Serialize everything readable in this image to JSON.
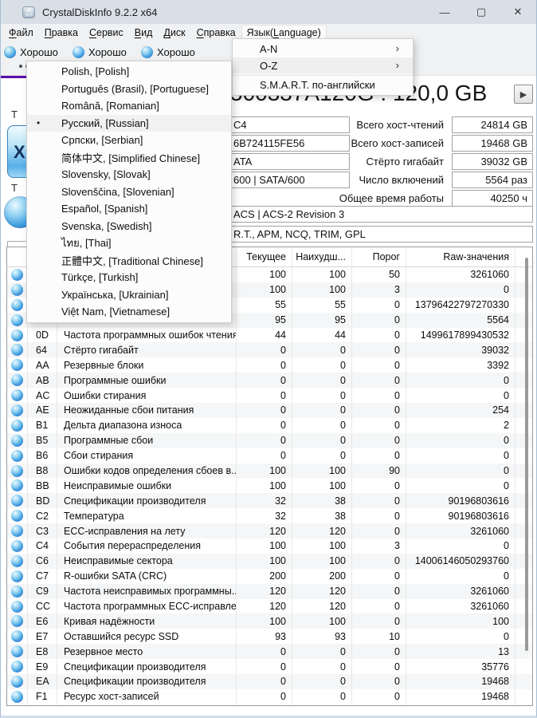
{
  "window": {
    "title": "CrystalDiskInfo 9.2.2 x64",
    "minimize_icon": "—",
    "maximize_icon": "▢",
    "close_icon": "✕"
  },
  "menubar": [
    {
      "pre": "",
      "key": "Ф",
      "post": "айл"
    },
    {
      "pre": "",
      "key": "П",
      "post": "равка"
    },
    {
      "pre": "",
      "key": "С",
      "post": "ервис"
    },
    {
      "pre": "",
      "key": "В",
      "post": "ид"
    },
    {
      "pre": "",
      "key": "Д",
      "post": "иск"
    },
    {
      "pre": "",
      "key": "С",
      "post": "правка"
    },
    {
      "pre": "Язык(",
      "key": "L",
      "post": "anguage)",
      "open": true
    }
  ],
  "toolbar": {
    "disks": [
      {
        "status": "Хорошо"
      },
      {
        "status": "Хорошо"
      },
      {
        "status": "Хорошо"
      }
    ]
  },
  "left_panel": {
    "health_label_fragment": "Т",
    "health_value_fragment": "Х",
    "temp_label_fragment": "Т"
  },
  "language_menu": {
    "items": [
      {
        "label": "A-N",
        "has_submenu": true,
        "highlighted": false
      },
      {
        "label": "O-Z",
        "has_submenu": true,
        "highlighted": true
      },
      {
        "label": "S.M.A.R.T. по-английски",
        "has_submenu": false,
        "highlighted": false
      }
    ],
    "submenu_arrow": "›"
  },
  "language_list": {
    "bullet": "•",
    "items": [
      {
        "label": "Polish, [Polish]",
        "selected": false
      },
      {
        "label": "Português (Brasil), [Portuguese]",
        "selected": false
      },
      {
        "label": "Română, [Romanian]",
        "selected": false
      },
      {
        "label": "Русский, [Russian]",
        "selected": true
      },
      {
        "label": "Српски, [Serbian]",
        "selected": false
      },
      {
        "label": "简体中文, [Simplified Chinese]",
        "selected": false
      },
      {
        "label": "Slovensky, [Slovak]",
        "selected": false
      },
      {
        "label": "Slovenščina, [Slovenian]",
        "selected": false
      },
      {
        "label": "Español, [Spanish]",
        "selected": false
      },
      {
        "label": "Svenska, [Swedish]",
        "selected": false
      },
      {
        "label": "ไทย, [Thai]",
        "selected": false
      },
      {
        "label": "正體中文, [Traditional Chinese]",
        "selected": false
      },
      {
        "label": "Türkçe, [Turkish]",
        "selected": false
      },
      {
        "label": "Українська, [Ukrainian]",
        "selected": false
      },
      {
        "label": "Việt Nam, [Vietnamese]",
        "selected": false
      }
    ]
  },
  "disk": {
    "title": "500337A120G : 120,0 GB",
    "play_icon": "▶"
  },
  "disk_fields_fragments": {
    "rows": [
      "C4",
      "6B724115FE56",
      "ATA",
      "600 | SATA/600"
    ],
    "wide_rows": [
      "ACS | ACS-2 Revision 3",
      "R.T., APM, NCQ, TRIM, GPL"
    ]
  },
  "disk_stats": [
    {
      "label": "Всего хост-чтений",
      "value": "24814 GB"
    },
    {
      "label": "Всего хост-записей",
      "value": "19468 GB"
    },
    {
      "label": "Стёрто гигабайт",
      "value": "39032 GB"
    },
    {
      "label": "Число включений",
      "value": "5564 раз"
    },
    {
      "label": "Общее время работы",
      "value": "40250 ч"
    }
  ],
  "smart": {
    "headers": {
      "current": "Текущее",
      "worst": "Наихудш...",
      "threshold": "Порог",
      "raw": "Raw-значения"
    },
    "rows": [
      {
        "id": "",
        "name": "",
        "cur": "100",
        "worst": "100",
        "thr": "50",
        "raw": "3261060"
      },
      {
        "id": "",
        "name": "",
        "cur": "100",
        "worst": "100",
        "thr": "3",
        "raw": "0"
      },
      {
        "id": "",
        "name": "",
        "cur": "55",
        "worst": "55",
        "thr": "0",
        "raw": "13796422797270330"
      },
      {
        "id": "",
        "name": "",
        "cur": "95",
        "worst": "95",
        "thr": "0",
        "raw": "5564"
      },
      {
        "id": "0D",
        "name": "Частота программных ошибок чтения",
        "cur": "44",
        "worst": "44",
        "thr": "0",
        "raw": "1499617899430532"
      },
      {
        "id": "64",
        "name": "Стёрто гигабайт",
        "cur": "0",
        "worst": "0",
        "thr": "0",
        "raw": "39032"
      },
      {
        "id": "AA",
        "name": "Резервные блоки",
        "cur": "0",
        "worst": "0",
        "thr": "0",
        "raw": "3392"
      },
      {
        "id": "AB",
        "name": "Программные ошибки",
        "cur": "0",
        "worst": "0",
        "thr": "0",
        "raw": "0"
      },
      {
        "id": "AC",
        "name": "Ошибки стирания",
        "cur": "0",
        "worst": "0",
        "thr": "0",
        "raw": "0"
      },
      {
        "id": "AE",
        "name": "Неожиданные сбои питания",
        "cur": "0",
        "worst": "0",
        "thr": "0",
        "raw": "254"
      },
      {
        "id": "B1",
        "name": "Дельта диапазона износа",
        "cur": "0",
        "worst": "0",
        "thr": "0",
        "raw": "2"
      },
      {
        "id": "B5",
        "name": "Программные сбои",
        "cur": "0",
        "worst": "0",
        "thr": "0",
        "raw": "0"
      },
      {
        "id": "B6",
        "name": "Сбои стирания",
        "cur": "0",
        "worst": "0",
        "thr": "0",
        "raw": "0"
      },
      {
        "id": "B8",
        "name": "Ошибки кодов определения сбоев в...",
        "cur": "100",
        "worst": "100",
        "thr": "90",
        "raw": "0"
      },
      {
        "id": "BB",
        "name": "Неисправимые ошибки",
        "cur": "100",
        "worst": "100",
        "thr": "0",
        "raw": "0"
      },
      {
        "id": "BD",
        "name": "Спецификации производителя",
        "cur": "32",
        "worst": "38",
        "thr": "0",
        "raw": "90196803616"
      },
      {
        "id": "C2",
        "name": "Температура",
        "cur": "32",
        "worst": "38",
        "thr": "0",
        "raw": "90196803616"
      },
      {
        "id": "C3",
        "name": "ECC-исправления на лету",
        "cur": "120",
        "worst": "120",
        "thr": "0",
        "raw": "3261060"
      },
      {
        "id": "C4",
        "name": "События перераспределения",
        "cur": "100",
        "worst": "100",
        "thr": "3",
        "raw": "0"
      },
      {
        "id": "C6",
        "name": "Неисправимые сектора",
        "cur": "100",
        "worst": "100",
        "thr": "0",
        "raw": "14006146050293760"
      },
      {
        "id": "C7",
        "name": "R-ошибки SATA (CRC)",
        "cur": "200",
        "worst": "200",
        "thr": "0",
        "raw": "0"
      },
      {
        "id": "C9",
        "name": "Частота неисправимых программны...",
        "cur": "120",
        "worst": "120",
        "thr": "0",
        "raw": "3261060"
      },
      {
        "id": "CC",
        "name": "Частота программных ECC-исправле...",
        "cur": "120",
        "worst": "120",
        "thr": "0",
        "raw": "3261060"
      },
      {
        "id": "E6",
        "name": "Кривая надёжности",
        "cur": "100",
        "worst": "100",
        "thr": "0",
        "raw": "100"
      },
      {
        "id": "E7",
        "name": "Оставшийся ресурс SSD",
        "cur": "93",
        "worst": "93",
        "thr": "10",
        "raw": "0"
      },
      {
        "id": "E8",
        "name": "Резервное место",
        "cur": "0",
        "worst": "0",
        "thr": "0",
        "raw": "13"
      },
      {
        "id": "E9",
        "name": "Спецификации производителя",
        "cur": "0",
        "worst": "0",
        "thr": "0",
        "raw": "35776"
      },
      {
        "id": "EA",
        "name": "Спецификации производителя",
        "cur": "0",
        "worst": "0",
        "thr": "0",
        "raw": "19468"
      },
      {
        "id": "F1",
        "name": "Ресурс хост-записей",
        "cur": "0",
        "worst": "0",
        "thr": "0",
        "raw": "19468"
      }
    ]
  },
  "colors": {
    "accent_purple": "#5a10a8",
    "status_good_blue": "#42a0e0"
  }
}
